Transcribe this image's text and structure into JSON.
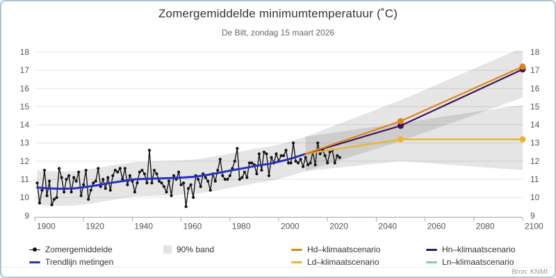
{
  "header": {
    "title": "Zomergemiddelde minimumtemperatuur (˚C)",
    "subtitle": "De Bilt, zondag 15 maart 2026"
  },
  "footer": {
    "source": "Bron: KNMI"
  },
  "colors": {
    "measurements": "#141414",
    "trend": "#2531c2",
    "hd": "#e0821a",
    "ld": "#f3b32b",
    "hn": "#3a1458",
    "ln": "#82c7bd",
    "band": "rgba(0,0,0,0.10)",
    "grid": "#e4e4e4",
    "axis": "#a8a8a8",
    "tick_label": "#555555",
    "frame_border": "#aac6d6"
  },
  "chart_data": {
    "type": "line",
    "title": "Zomergemiddelde minimumtemperatuur (˚C)",
    "subtitle": "De Bilt, zondag 15 maart 2026",
    "xlabel": "",
    "ylabel": "",
    "x_axis": {
      "ticks": [
        1900,
        1920,
        1940,
        1960,
        1980,
        2000,
        2020,
        2040,
        2060,
        2080,
        2100
      ],
      "range": [
        1900,
        2100
      ],
      "grid": false
    },
    "y_axis": {
      "ticks": [
        9,
        10,
        11,
        12,
        13,
        14,
        15,
        16,
        17,
        18
      ],
      "range": [
        9,
        18
      ],
      "unit": "˚C",
      "grid": true,
      "labels_both_sides": true
    },
    "series": [
      {
        "name": "Zomergemiddelde",
        "style": "line+markers",
        "color": "#141414",
        "start_year": 1901,
        "values": [
          10.8,
          9.7,
          10.4,
          11.5,
          10.1,
          10.9,
          9.6,
          9.9,
          10.0,
          11.6,
          11.1,
          10.3,
          11.0,
          11.2,
          10.3,
          11.1,
          10.9,
          11.4,
          10.1,
          10.7,
          11.5,
          9.9,
          10.4,
          10.8,
          10.9,
          11.6,
          10.6,
          11.0,
          10.5,
          11.1,
          10.4,
          11.2,
          11.5,
          11.4,
          11.6,
          11.0,
          11.6,
          10.7,
          11.2,
          10.9,
          10.3,
          10.8,
          11.4,
          11.5,
          11.3,
          10.8,
          12.6,
          10.8,
          11.5,
          11.3,
          10.9,
          10.8,
          10.6,
          10.3,
          10.9,
          10.1,
          11.2,
          11.0,
          11.4,
          10.7,
          10.8,
          9.5,
          10.5,
          10.7,
          10.0,
          11.2,
          11.0,
          10.6,
          11.3,
          11.1,
          10.9,
          10.4,
          11.3,
          10.9,
          11.5,
          12.1,
          11.2,
          11.0,
          11.0,
          11.2,
          11.6,
          12.0,
          12.7,
          11.0,
          11.1,
          11.4,
          11.1,
          11.9,
          11.9,
          11.8,
          11.3,
          12.4,
          11.5,
          12.5,
          12.4,
          11.2,
          12.2,
          11.9,
          12.4,
          12.0,
          12.3,
          12.3,
          12.6,
          11.9,
          11.9,
          13.0,
          12.0,
          11.9,
          12.1,
          11.7,
          12.2,
          11.8,
          11.9,
          12.5,
          11.8,
          13.0,
          12.4,
          12.6,
          12.3,
          11.9,
          12.5,
          12.6,
          11.9,
          12.3,
          12.2
        ]
      },
      {
        "name": "Trendlijn metingen",
        "style": "line",
        "color": "#2531c2",
        "x": [
          1901,
          1906,
          1911,
          1916,
          1921,
          1926,
          1931,
          1936,
          1941,
          1946,
          1951,
          1956,
          1961,
          1966,
          1971,
          1976,
          1981,
          1986,
          1991,
          1996,
          2001,
          2006,
          2011
        ],
        "values": [
          10.55,
          10.5,
          10.48,
          10.5,
          10.58,
          10.68,
          10.8,
          10.9,
          11.0,
          11.03,
          11.05,
          11.07,
          11.1,
          11.15,
          11.25,
          11.37,
          11.5,
          11.62,
          11.75,
          11.85,
          12.0,
          12.18,
          12.4
        ]
      },
      {
        "name": "Ln–klimaatscenario",
        "style": "line",
        "color": "#82c7bd",
        "x": [
          2011,
          2050,
          2100
        ],
        "values": [
          12.4,
          13.2,
          13.2
        ],
        "marker_x": []
      },
      {
        "name": "Ld–klimaatscenario",
        "style": "line+markers",
        "color": "#f3b32b",
        "x": [
          2011,
          2050,
          2100
        ],
        "values": [
          12.4,
          13.2,
          13.2
        ],
        "marker_x": [
          2050,
          2100
        ]
      },
      {
        "name": "Hn–klimaatscenario",
        "style": "line+markers",
        "color": "#3a1458",
        "x": [
          2011,
          2050,
          2100
        ],
        "values": [
          12.4,
          13.95,
          17.05
        ],
        "marker_x": [
          2050,
          2100
        ]
      },
      {
        "name": "Hd–klimaatscenario",
        "style": "line+markers",
        "color": "#e0821a",
        "x": [
          2011,
          2050,
          2100
        ],
        "values": [
          12.4,
          14.2,
          17.2
        ],
        "marker_x": [
          2050,
          2100
        ]
      }
    ],
    "bands": {
      "historical_90pct": {
        "follows": "Trendlijn metingen",
        "half_width": 0.95
      },
      "h_scenario_funnel": {
        "x": [
          2011,
          2050,
          2100
        ],
        "upper": [
          13.35,
          15.35,
          18.25
        ],
        "lower": [
          11.45,
          13.1,
          15.5
        ]
      },
      "l_scenario_funnel": {
        "x": [
          2011,
          2050,
          2100
        ],
        "upper": [
          13.35,
          14.1,
          15.1
        ],
        "lower": [
          11.45,
          12.0,
          11.5
        ]
      }
    },
    "legend_position": "bottom"
  },
  "legend": {
    "items": [
      {
        "row": 0,
        "col": 0,
        "label": "Zomergemiddelde",
        "marker": "dot-line",
        "color": "#141414"
      },
      {
        "row": 1,
        "col": 0,
        "label": "Trendlijn metingen",
        "marker": "line",
        "color": "#2531c2"
      },
      {
        "row": 0,
        "col": 1,
        "label": "90% band",
        "marker": "band",
        "color": "#e3e3e3"
      },
      {
        "row": 0,
        "col": 2,
        "label": "Hd–klimaatscenario",
        "marker": "line",
        "color": "#e0821a"
      },
      {
        "row": 1,
        "col": 2,
        "label": "Ld–klimaatscenario",
        "marker": "line",
        "color": "#f3b32b"
      },
      {
        "row": 0,
        "col": 3,
        "label": "Hn–klimaatscenario",
        "marker": "line",
        "color": "#3a1458"
      },
      {
        "row": 1,
        "col": 3,
        "label": "Ln–klimaatscenario",
        "marker": "line",
        "color": "#82c7bd"
      }
    ]
  }
}
